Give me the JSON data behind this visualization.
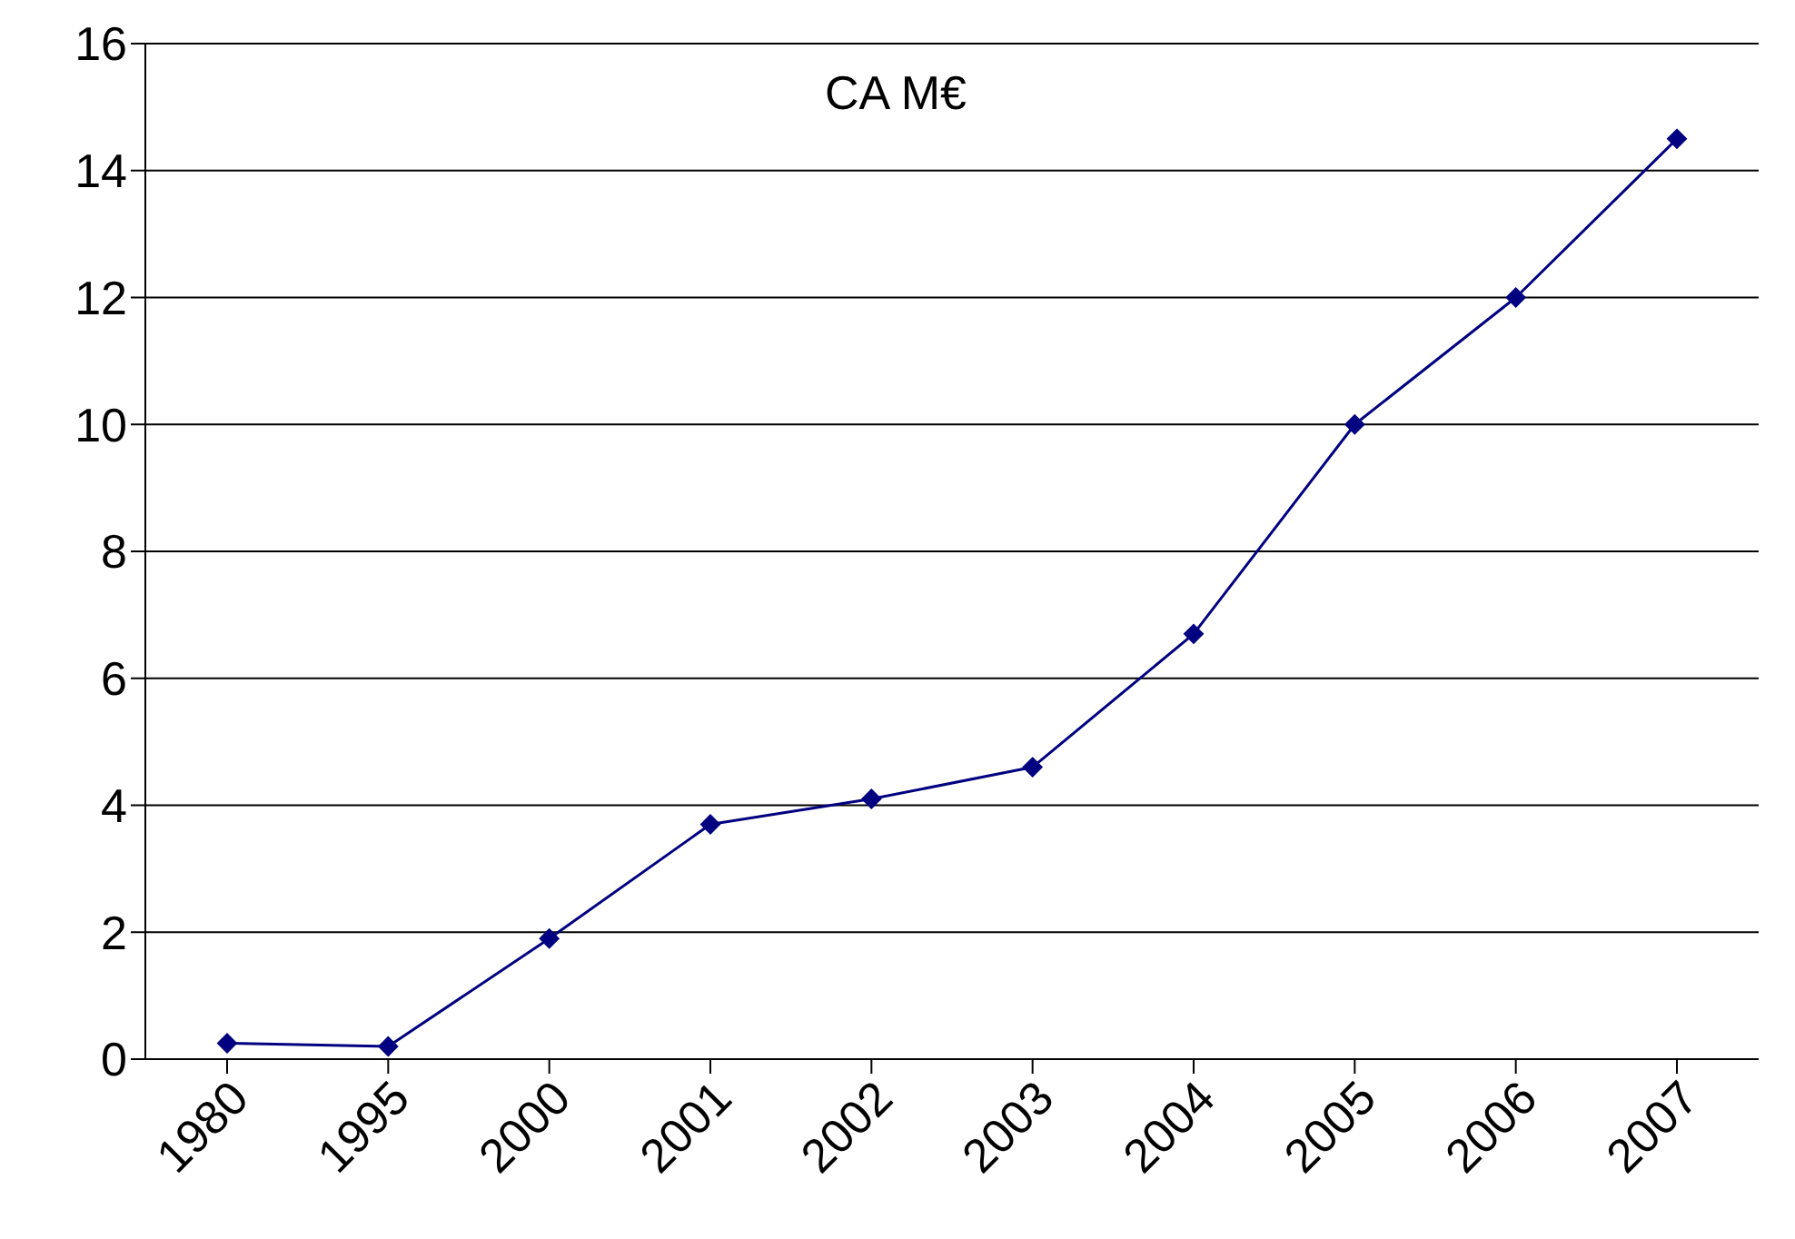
{
  "chart_data": {
    "type": "line",
    "title": "CA M€",
    "categories": [
      "1980",
      "1995",
      "2000",
      "2001",
      "2002",
      "2003",
      "2004",
      "2005",
      "2006",
      "2007"
    ],
    "series": [
      {
        "color": "#000080",
        "values": [
          0.25,
          0.2,
          1.9,
          3.7,
          4.1,
          4.6,
          6.7,
          10,
          12,
          14.5
        ]
      }
    ],
    "ylim": [
      0,
      16
    ],
    "yticks": [
      0,
      2,
      4,
      6,
      8,
      10,
      12,
      14,
      16
    ],
    "grid": "y",
    "marker": "diamond",
    "line_style": "solid"
  }
}
